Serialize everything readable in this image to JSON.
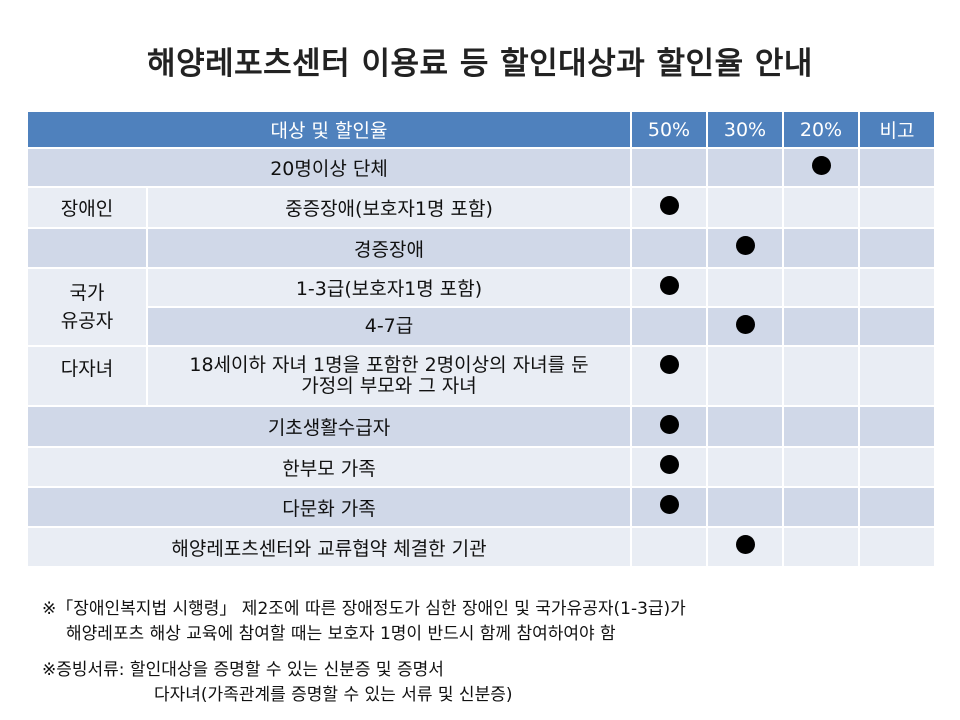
{
  "title": "해양레포츠센터 이용료 등 할인대상과 할인율 안내",
  "table": {
    "headers": {
      "target": "대상 및 할인율",
      "p50": "50%",
      "p30": "30%",
      "p20": "20%",
      "note": "비고"
    },
    "rows": {
      "group20": {
        "label": "20명이상 단체",
        "dot": "●"
      },
      "disabled": {
        "group": "장애인",
        "severe": {
          "label": "중증장애(보호자1명 포함)",
          "dot": "●"
        },
        "mild": {
          "label": "경증장애",
          "dot": "●"
        }
      },
      "veteran": {
        "group_line1": "국가",
        "group_line2": "유공자",
        "grade13": {
          "label": "1-3급(보호자1명 포함)",
          "dot": "●"
        },
        "grade47": {
          "label": "4-7급",
          "dot": "●"
        }
      },
      "multichild": {
        "group": "다자녀",
        "line1": "18세이하 자녀 1명을 포함한 2명이상의 자녀를 둔",
        "line2": "가정의 부모와 그 자녀",
        "dot": "●"
      },
      "basic_livelihood": {
        "label": "기초생활수급자",
        "dot": "●"
      },
      "single_parent": {
        "label": "한부모 가족",
        "dot": "●"
      },
      "multicultural": {
        "label": "다문화 가족",
        "dot": "●"
      },
      "partner_org": {
        "label": "해양레포츠센터와 교류협약 체결한 기관",
        "dot": "●"
      }
    }
  },
  "notes": {
    "note1_line1": "※「장애인복지법 시행령」 제2조에 따른 장애정도가 심한 장애인 및 국가유공자(1-3급)가",
    "note1_line2": "해양레포츠 해상 교육에 참여할 때는 보호자 1명이 반드시 함께 참여하여야 함",
    "note2_line1": "※증빙서류: 할인대상을 증명할 수 있는 신분증 및 증명서",
    "note2_line2": "다자녀(가족관계를 증명할 수 있는 서류 및 신분증)"
  }
}
